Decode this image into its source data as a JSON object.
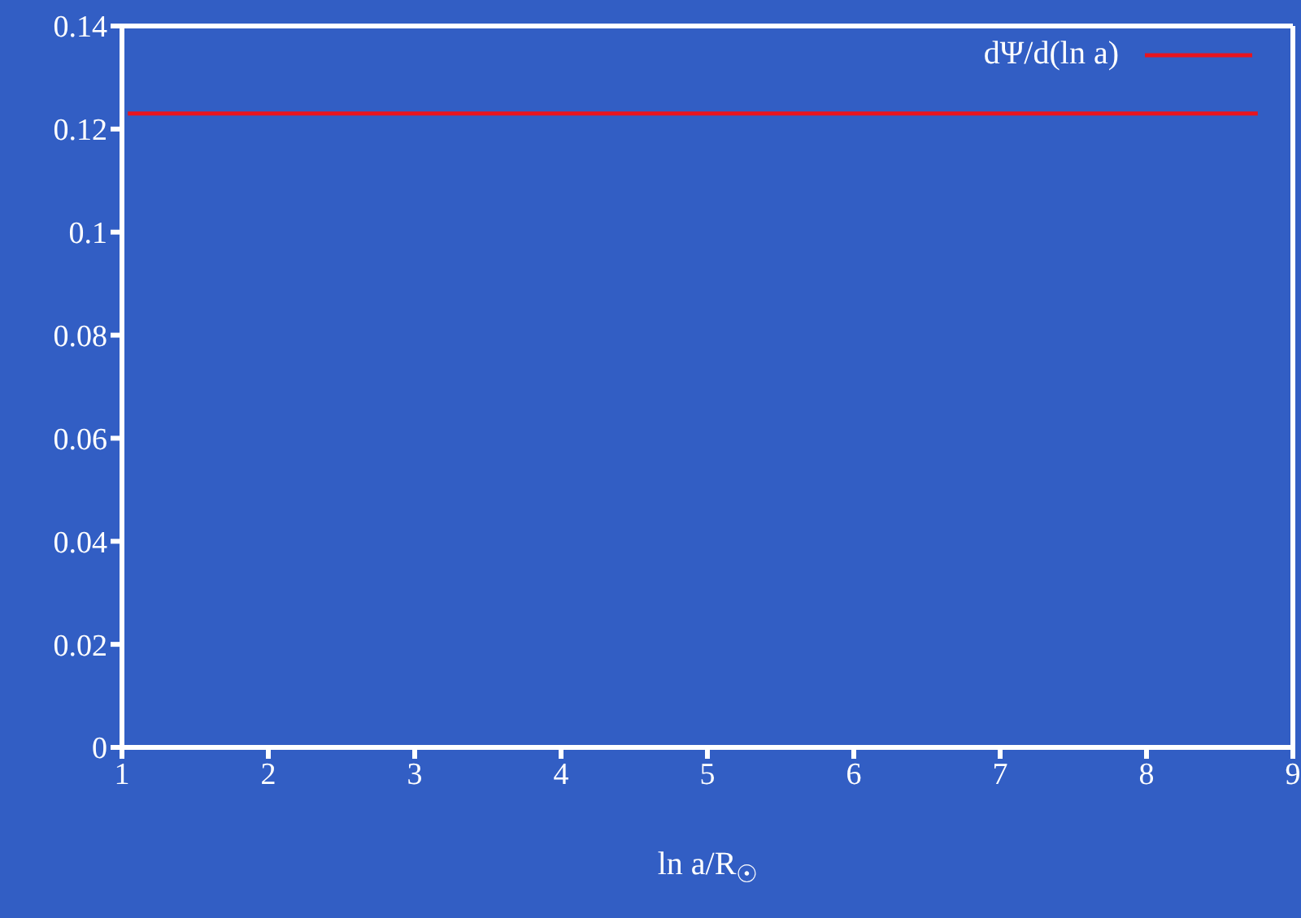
{
  "chart_data": {
    "type": "line",
    "xlabel": "ln a/R$_{☉}$",
    "x": [
      1.04,
      8.76
    ],
    "series": [
      {
        "name": "dΨ/d(ln a)",
        "color": "#e8141e",
        "values": [
          0.123,
          0.123
        ]
      }
    ],
    "xlim": [
      1,
      9
    ],
    "xticks": [
      1,
      2,
      3,
      4,
      5,
      6,
      7,
      8,
      9
    ],
    "ylim": [
      0,
      0.14
    ],
    "yticks": [
      0,
      0.02,
      0.04,
      0.06,
      0.08,
      0.1,
      0.12,
      0.14
    ],
    "legend": "top right",
    "marker": "none",
    "line_style": "solid"
  }
}
